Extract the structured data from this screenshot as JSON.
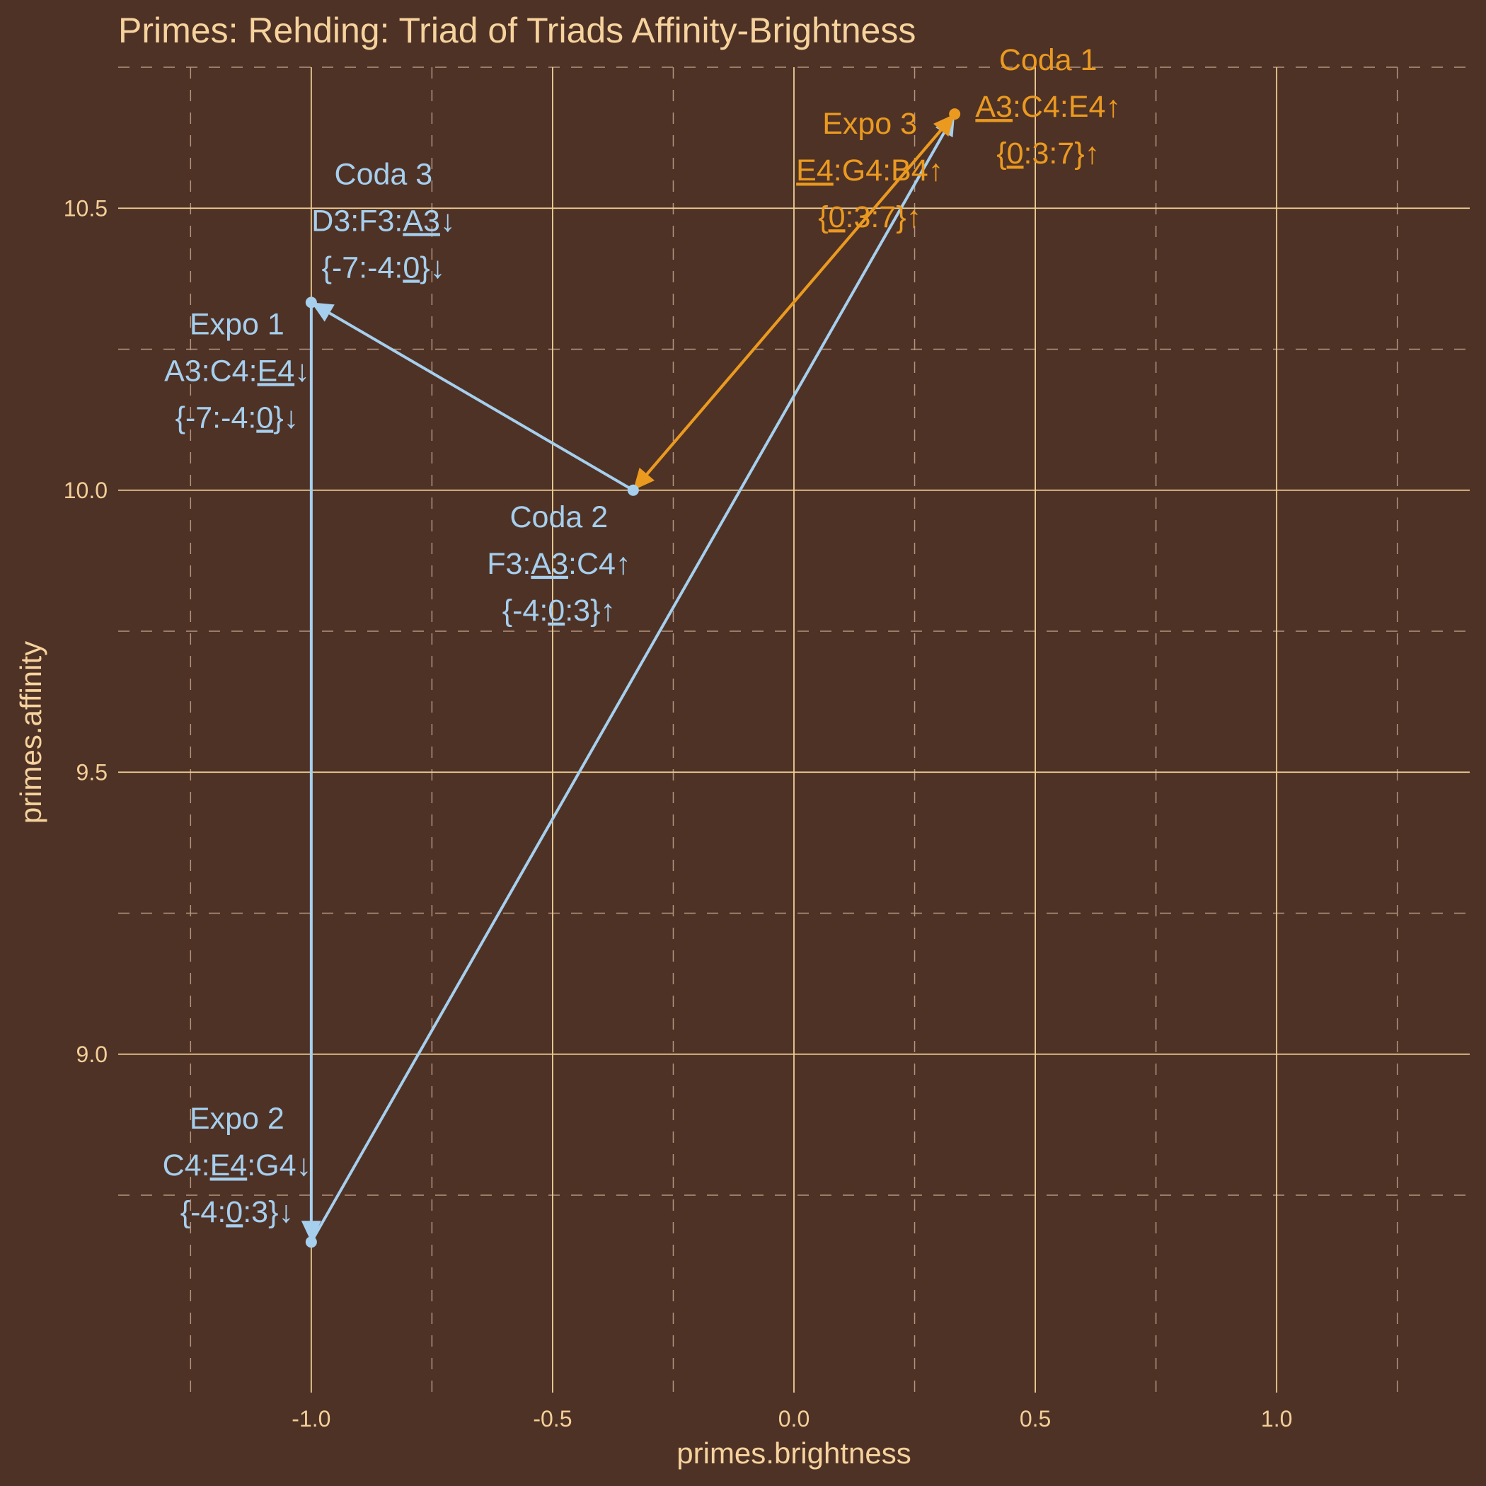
{
  "chart_data": {
    "type": "scatter",
    "title": "Primes: Rehding: Triad of Triads Affinity-Brightness",
    "xlabel": "primes.brightness",
    "ylabel": "primes.affinity",
    "xlim": [
      -1.4,
      1.4
    ],
    "ylim": [
      8.4,
      10.75
    ],
    "x_ticks": [
      -1.0,
      -0.5,
      0.0,
      0.5,
      1.0
    ],
    "x_tick_labels": [
      "-1.0",
      "-0.5",
      "0.0",
      "0.5",
      "1.0"
    ],
    "y_ticks": [
      9.0,
      9.5,
      10.0,
      10.5
    ],
    "y_tick_labels": [
      "9.0",
      "9.5",
      "10.0",
      "10.5"
    ],
    "grid": true,
    "colors": {
      "background": "#4f3226",
      "blue": "#a6cfee",
      "orange": "#eb9a20",
      "text": "#f6d39d"
    },
    "points": [
      {
        "id": "expo1",
        "x": -1.0,
        "y": 10.333,
        "color": "#a6cfee",
        "lines": [
          [
            {
              "t": "Expo 1"
            }
          ],
          [
            {
              "t": "A3:C4:"
            },
            {
              "t": "E4",
              "u": true
            },
            {
              "t": "↓"
            }
          ],
          [
            {
              "t": "{-7:-4:"
            },
            {
              "t": "0",
              "u": true
            },
            {
              "t": "}↓"
            }
          ]
        ]
      },
      {
        "id": "expo2",
        "x": -1.0,
        "y": 8.667,
        "color": "#a6cfee",
        "lines": [
          [
            {
              "t": "Expo 2"
            }
          ],
          [
            {
              "t": "C4:"
            },
            {
              "t": "E4",
              "u": true
            },
            {
              "t": ":G4↓"
            }
          ],
          [
            {
              "t": "{-4:"
            },
            {
              "t": "0",
              "u": true
            },
            {
              "t": ":3}↓"
            }
          ]
        ]
      },
      {
        "id": "coda1",
        "x": 0.333,
        "y": 10.667,
        "color": "#eb9a20",
        "lines": [
          [
            {
              "t": "Coda 1"
            }
          ],
          [
            {
              "t": "A3",
              "u": true
            },
            {
              "t": ":C4:E4↑"
            }
          ],
          [
            {
              "t": "{"
            },
            {
              "t": "0",
              "u": true
            },
            {
              "t": ":3:7}↑"
            }
          ]
        ]
      },
      {
        "id": "expo3",
        "x": 0.333,
        "y": 10.667,
        "color": "#eb9a20",
        "lines": [
          [
            {
              "t": "Expo 3"
            }
          ],
          [
            {
              "t": "E4",
              "u": true
            },
            {
              "t": ":G4:B4↑"
            }
          ],
          [
            {
              "t": "{"
            },
            {
              "t": "0",
              "u": true
            },
            {
              "t": ":3:7}↑"
            }
          ]
        ]
      },
      {
        "id": "coda2",
        "x": -0.333,
        "y": 10.0,
        "color": "#a6cfee",
        "lines": [
          [
            {
              "t": "Coda 2"
            }
          ],
          [
            {
              "t": "F3:"
            },
            {
              "t": "A3",
              "u": true
            },
            {
              "t": ":C4↑"
            }
          ],
          [
            {
              "t": "{-4:"
            },
            {
              "t": "0",
              "u": true
            },
            {
              "t": ":3}↑"
            }
          ]
        ]
      },
      {
        "id": "coda3",
        "x": -1.0,
        "y": 10.333,
        "color": "#a6cfee",
        "lines": [
          [
            {
              "t": "Coda 3"
            }
          ],
          [
            {
              "t": "D3:F3:"
            },
            {
              "t": "A3",
              "u": true
            },
            {
              "t": "↓"
            }
          ],
          [
            {
              "t": "{-7:-4:"
            },
            {
              "t": "0",
              "u": true
            },
            {
              "t": "}↓"
            }
          ]
        ]
      }
    ],
    "arrows": [
      {
        "from": [
          -1.0,
          10.333
        ],
        "to": [
          -1.0,
          8.667
        ],
        "color": "#a6cfee"
      },
      {
        "from": [
          -1.0,
          8.667
        ],
        "to": [
          0.333,
          10.667
        ],
        "color": "#a6cfee"
      },
      {
        "from": [
          0.333,
          10.667
        ],
        "to": [
          -0.333,
          10.0
        ],
        "color": "#eb9a20"
      },
      {
        "from": [
          -0.333,
          10.0
        ],
        "to": [
          -1.0,
          10.333
        ],
        "color": "#a6cfee"
      },
      {
        "from": [
          -0.333,
          10.0
        ],
        "to": [
          0.333,
          10.667
        ],
        "color": "#eb9a20"
      }
    ]
  }
}
